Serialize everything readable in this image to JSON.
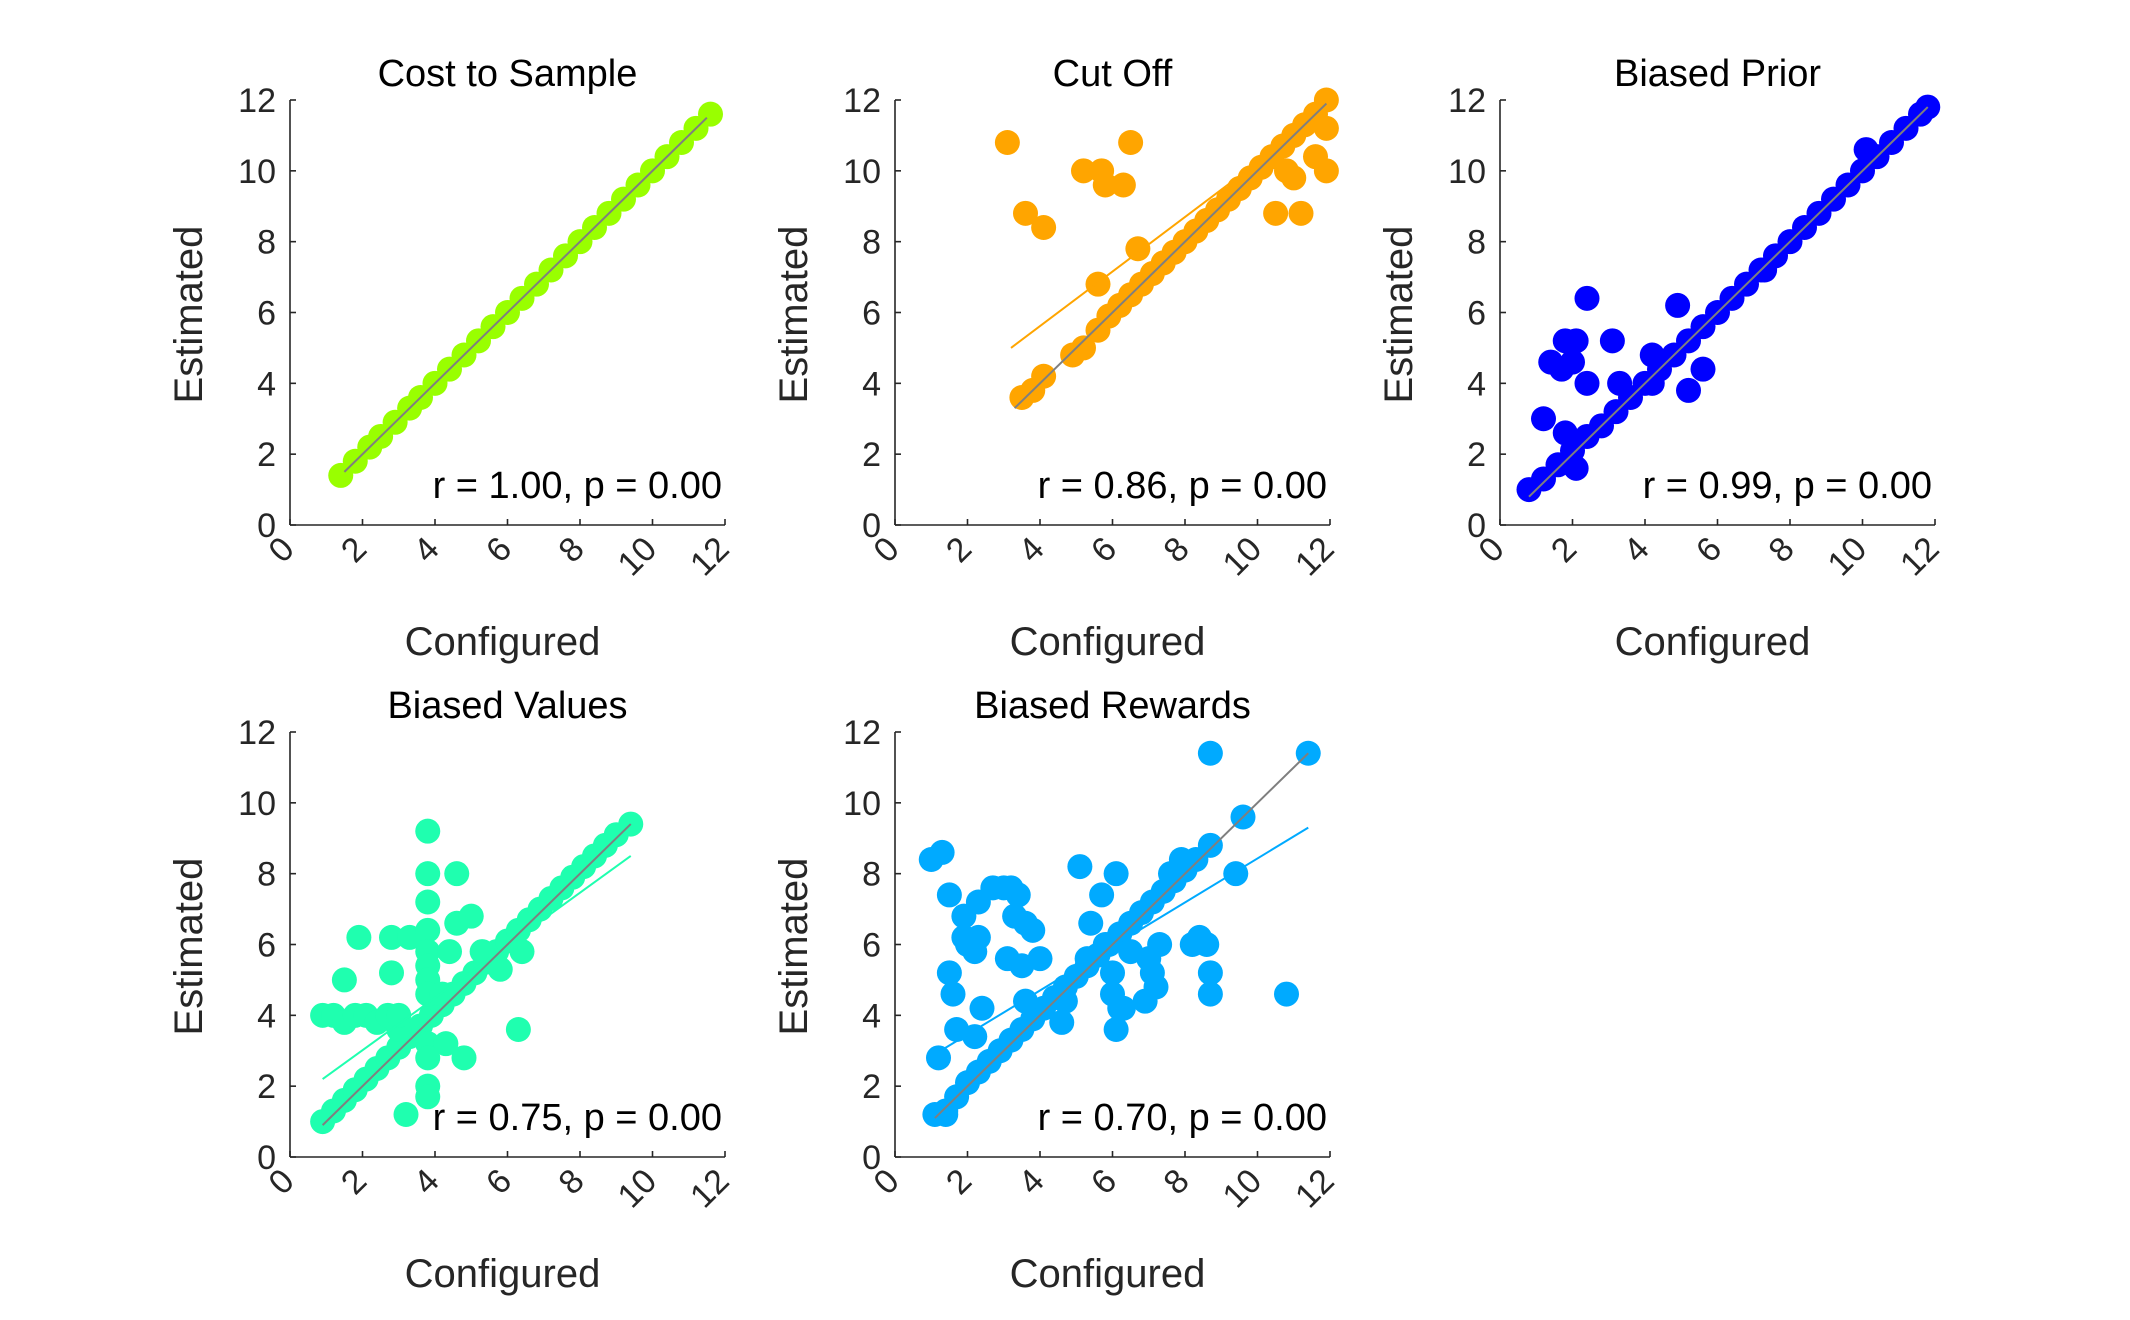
{
  "chart_data": [
    {
      "type": "scatter",
      "title": "Cost to Sample",
      "xlabel": "Configured",
      "ylabel": "Estimated",
      "xlim": [
        0,
        12
      ],
      "ylim": [
        0,
        12
      ],
      "xticks": [
        0,
        2,
        4,
        6,
        8,
        10,
        12
      ],
      "yticks": [
        0,
        2,
        4,
        6,
        8,
        10,
        12
      ],
      "color": "#99ff00",
      "annotation": "r = 1.00, p = 0.00",
      "identity_line": [
        [
          1.5,
          1.5
        ],
        [
          11.5,
          11.5
        ]
      ],
      "fit_line": [
        [
          1.4,
          1.4
        ],
        [
          11.6,
          11.6
        ]
      ],
      "points": [
        [
          1.4,
          1.4
        ],
        [
          1.8,
          1.8
        ],
        [
          2.2,
          2.2
        ],
        [
          2.5,
          2.5
        ],
        [
          2.9,
          2.9
        ],
        [
          3.3,
          3.3
        ],
        [
          3.6,
          3.6
        ],
        [
          4.0,
          4.0
        ],
        [
          4.4,
          4.4
        ],
        [
          4.8,
          4.8
        ],
        [
          5.2,
          5.2
        ],
        [
          5.6,
          5.6
        ],
        [
          6.0,
          6.0
        ],
        [
          6.4,
          6.4
        ],
        [
          6.8,
          6.8
        ],
        [
          7.2,
          7.2
        ],
        [
          7.6,
          7.6
        ],
        [
          8.0,
          8.0
        ],
        [
          8.4,
          8.4
        ],
        [
          8.8,
          8.8
        ],
        [
          9.2,
          9.2
        ],
        [
          9.6,
          9.6
        ],
        [
          10.0,
          10.0
        ],
        [
          10.4,
          10.4
        ],
        [
          10.8,
          10.8
        ],
        [
          11.2,
          11.2
        ],
        [
          11.6,
          11.6
        ]
      ]
    },
    {
      "type": "scatter",
      "title": "Cut Off",
      "xlabel": "Configured",
      "ylabel": "Estimated",
      "xlim": [
        0,
        12
      ],
      "ylim": [
        0,
        12
      ],
      "xticks": [
        0,
        2,
        4,
        6,
        8,
        10,
        12
      ],
      "yticks": [
        0,
        2,
        4,
        6,
        8,
        10,
        12
      ],
      "color": "#ffa500",
      "annotation": "r = 0.86, p = 0.00",
      "identity_line": [
        [
          3.3,
          3.3
        ],
        [
          11.9,
          11.9
        ]
      ],
      "fit_line": [
        [
          3.2,
          5.0
        ],
        [
          11.9,
          11.7
        ]
      ],
      "points": [
        [
          3.5,
          3.6
        ],
        [
          3.8,
          3.8
        ],
        [
          4.1,
          4.2
        ],
        [
          4.9,
          4.8
        ],
        [
          5.2,
          5.0
        ],
        [
          5.6,
          5.5
        ],
        [
          5.9,
          5.9
        ],
        [
          6.2,
          6.2
        ],
        [
          6.5,
          6.5
        ],
        [
          6.8,
          6.8
        ],
        [
          7.1,
          7.1
        ],
        [
          7.4,
          7.4
        ],
        [
          7.7,
          7.7
        ],
        [
          8.0,
          8.0
        ],
        [
          8.3,
          8.3
        ],
        [
          8.6,
          8.6
        ],
        [
          8.9,
          8.9
        ],
        [
          9.2,
          9.2
        ],
        [
          9.5,
          9.5
        ],
        [
          9.8,
          9.8
        ],
        [
          10.1,
          10.1
        ],
        [
          10.4,
          10.4
        ],
        [
          10.7,
          10.7
        ],
        [
          11.0,
          11.0
        ],
        [
          11.3,
          11.3
        ],
        [
          11.6,
          11.6
        ],
        [
          11.9,
          12.0
        ],
        [
          3.1,
          10.8
        ],
        [
          3.6,
          8.8
        ],
        [
          4.1,
          8.4
        ],
        [
          5.2,
          10.0
        ],
        [
          5.7,
          10.0
        ],
        [
          5.8,
          9.6
        ],
        [
          6.3,
          9.6
        ],
        [
          6.5,
          10.8
        ],
        [
          6.7,
          7.8
        ],
        [
          5.6,
          6.8
        ],
        [
          10.5,
          8.8
        ],
        [
          11.2,
          8.8
        ],
        [
          10.8,
          10.0
        ],
        [
          11.9,
          10.0
        ],
        [
          11.9,
          11.2
        ],
        [
          11.0,
          9.8
        ],
        [
          11.6,
          10.4
        ]
      ]
    },
    {
      "type": "scatter",
      "title": "Biased Prior",
      "xlabel": "Configured",
      "ylabel": "Estimated",
      "xlim": [
        0,
        12
      ],
      "ylim": [
        0,
        12
      ],
      "xticks": [
        0,
        2,
        4,
        6,
        8,
        10,
        12
      ],
      "yticks": [
        0,
        2,
        4,
        6,
        8,
        10,
        12
      ],
      "color": "#0000ff",
      "annotation": "r = 0.99, p = 0.00",
      "identity_line": [
        [
          0.8,
          0.8
        ],
        [
          11.8,
          11.8
        ]
      ],
      "fit_line": [
        [
          0.8,
          1.0
        ],
        [
          11.8,
          11.7
        ]
      ],
      "points": [
        [
          0.8,
          1.0
        ],
        [
          1.2,
          1.3
        ],
        [
          1.6,
          1.7
        ],
        [
          2.0,
          2.1
        ],
        [
          2.4,
          2.5
        ],
        [
          2.8,
          2.8
        ],
        [
          3.2,
          3.2
        ],
        [
          3.6,
          3.6
        ],
        [
          4.0,
          4.0
        ],
        [
          4.4,
          4.4
        ],
        [
          4.8,
          4.8
        ],
        [
          5.2,
          5.2
        ],
        [
          5.6,
          5.6
        ],
        [
          6.0,
          6.0
        ],
        [
          6.4,
          6.4
        ],
        [
          6.8,
          6.8
        ],
        [
          7.2,
          7.2
        ],
        [
          7.6,
          7.6
        ],
        [
          8.0,
          8.0
        ],
        [
          8.4,
          8.4
        ],
        [
          8.8,
          8.8
        ],
        [
          9.2,
          9.2
        ],
        [
          9.6,
          9.6
        ],
        [
          10.0,
          10.0
        ],
        [
          10.4,
          10.4
        ],
        [
          10.8,
          10.8
        ],
        [
          11.2,
          11.2
        ],
        [
          11.6,
          11.6
        ],
        [
          11.8,
          11.8
        ],
        [
          1.4,
          4.6
        ],
        [
          1.7,
          4.4
        ],
        [
          1.8,
          5.2
        ],
        [
          2.1,
          5.2
        ],
        [
          2.0,
          4.6
        ],
        [
          2.4,
          4.0
        ],
        [
          2.4,
          6.4
        ],
        [
          3.1,
          5.2
        ],
        [
          3.3,
          4.0
        ],
        [
          4.2,
          4.8
        ],
        [
          4.2,
          4.0
        ],
        [
          4.9,
          6.2
        ],
        [
          5.2,
          3.8
        ],
        [
          5.6,
          4.4
        ],
        [
          1.2,
          3.0
        ],
        [
          1.8,
          2.6
        ],
        [
          2.1,
          1.6
        ],
        [
          10.1,
          10.6
        ],
        [
          7.3,
          7.2
        ]
      ]
    },
    {
      "type": "scatter",
      "title": "Biased Values",
      "xlabel": "Configured",
      "ylabel": "Estimated",
      "xlim": [
        0,
        12
      ],
      "ylim": [
        0,
        12
      ],
      "xticks": [
        0,
        2,
        4,
        6,
        8,
        10,
        12
      ],
      "yticks": [
        0,
        2,
        4,
        6,
        8,
        10,
        12
      ],
      "color": "#1fffaf",
      "annotation": "r = 0.75, p = 0.00",
      "identity_line": [
        [
          0.9,
          0.9
        ],
        [
          9.4,
          9.4
        ]
      ],
      "fit_line": [
        [
          0.9,
          2.2
        ],
        [
          9.4,
          8.5
        ]
      ],
      "points": [
        [
          0.9,
          1.0
        ],
        [
          1.2,
          1.3
        ],
        [
          1.5,
          1.6
        ],
        [
          1.8,
          1.9
        ],
        [
          2.1,
          2.2
        ],
        [
          2.4,
          2.5
        ],
        [
          2.7,
          2.8
        ],
        [
          3.0,
          3.1
        ],
        [
          3.3,
          3.4
        ],
        [
          3.6,
          3.7
        ],
        [
          3.9,
          4.0
        ],
        [
          4.2,
          4.3
        ],
        [
          4.5,
          4.6
        ],
        [
          4.8,
          4.9
        ],
        [
          5.1,
          5.2
        ],
        [
          5.4,
          5.5
        ],
        [
          5.7,
          5.8
        ],
        [
          6.0,
          6.1
        ],
        [
          6.3,
          6.4
        ],
        [
          6.6,
          6.7
        ],
        [
          6.9,
          7.0
        ],
        [
          7.2,
          7.3
        ],
        [
          7.5,
          7.6
        ],
        [
          7.8,
          7.9
        ],
        [
          8.1,
          8.2
        ],
        [
          8.4,
          8.5
        ],
        [
          8.7,
          8.8
        ],
        [
          9.0,
          9.1
        ],
        [
          9.4,
          9.4
        ],
        [
          0.9,
          4.0
        ],
        [
          1.2,
          4.0
        ],
        [
          1.5,
          3.8
        ],
        [
          1.8,
          4.0
        ],
        [
          2.1,
          4.0
        ],
        [
          2.4,
          3.8
        ],
        [
          2.7,
          4.0
        ],
        [
          3.0,
          3.6
        ],
        [
          1.5,
          5.0
        ],
        [
          1.9,
          6.2
        ],
        [
          2.8,
          6.2
        ],
        [
          3.3,
          6.2
        ],
        [
          2.8,
          5.2
        ],
        [
          3.0,
          4.0
        ],
        [
          3.2,
          1.2
        ],
        [
          3.8,
          9.2
        ],
        [
          3.8,
          8.0
        ],
        [
          3.8,
          7.2
        ],
        [
          3.8,
          6.4
        ],
        [
          3.8,
          5.8
        ],
        [
          3.8,
          5.4
        ],
        [
          3.8,
          5.0
        ],
        [
          3.8,
          4.6
        ],
        [
          3.8,
          3.2
        ],
        [
          3.8,
          2.8
        ],
        [
          3.8,
          2.0
        ],
        [
          3.8,
          1.7
        ],
        [
          4.6,
          8.0
        ],
        [
          4.4,
          5.8
        ],
        [
          4.6,
          6.6
        ],
        [
          4.8,
          2.8
        ],
        [
          4.3,
          3.2
        ],
        [
          5.0,
          6.8
        ],
        [
          5.3,
          5.8
        ],
        [
          6.3,
          3.6
        ],
        [
          6.4,
          5.8
        ],
        [
          5.8,
          5.3
        ],
        [
          4.2,
          4.6
        ]
      ]
    },
    {
      "type": "scatter",
      "title": "Biased Rewards",
      "xlabel": "Configured",
      "ylabel": "Estimated",
      "xlim": [
        0,
        12
      ],
      "ylim": [
        0,
        12
      ],
      "xticks": [
        0,
        2,
        4,
        6,
        8,
        10,
        12
      ],
      "yticks": [
        0,
        2,
        4,
        6,
        8,
        10,
        12
      ],
      "color": "#00aaff",
      "annotation": "r = 0.70, p = 0.00",
      "identity_line": [
        [
          1.1,
          1.1
        ],
        [
          11.4,
          11.4
        ]
      ],
      "fit_line": [
        [
          1.1,
          2.9
        ],
        [
          11.4,
          9.3
        ]
      ],
      "points": [
        [
          1.1,
          1.2
        ],
        [
          1.4,
          1.3
        ],
        [
          1.7,
          1.7
        ],
        [
          2.0,
          2.1
        ],
        [
          2.3,
          2.4
        ],
        [
          2.6,
          2.7
        ],
        [
          2.9,
          3.0
        ],
        [
          3.2,
          3.3
        ],
        [
          3.5,
          3.6
        ],
        [
          3.8,
          3.9
        ],
        [
          4.1,
          4.2
        ],
        [
          4.4,
          4.5
        ],
        [
          4.7,
          4.8
        ],
        [
          5.0,
          5.1
        ],
        [
          5.3,
          5.4
        ],
        [
          5.6,
          5.7
        ],
        [
          5.9,
          6.0
        ],
        [
          6.2,
          6.3
        ],
        [
          6.5,
          6.6
        ],
        [
          6.8,
          6.9
        ],
        [
          7.1,
          7.2
        ],
        [
          7.4,
          7.5
        ],
        [
          7.7,
          7.8
        ],
        [
          8.0,
          8.1
        ],
        [
          8.3,
          8.4
        ],
        [
          8.7,
          8.8
        ],
        [
          1.4,
          1.2
        ],
        [
          1.0,
          8.4
        ],
        [
          1.3,
          8.6
        ],
        [
          1.2,
          2.8
        ],
        [
          1.5,
          7.4
        ],
        [
          1.9,
          6.8
        ],
        [
          1.9,
          6.2
        ],
        [
          2.0,
          6.0
        ],
        [
          2.2,
          5.8
        ],
        [
          2.3,
          6.2
        ],
        [
          1.5,
          5.2
        ],
        [
          1.6,
          4.6
        ],
        [
          1.7,
          3.6
        ],
        [
          2.3,
          7.2
        ],
        [
          2.4,
          4.2
        ],
        [
          2.2,
          3.4
        ],
        [
          2.7,
          7.6
        ],
        [
          3.0,
          7.6
        ],
        [
          3.2,
          7.6
        ],
        [
          3.4,
          7.4
        ],
        [
          3.3,
          6.8
        ],
        [
          3.6,
          6.6
        ],
        [
          3.8,
          6.4
        ],
        [
          3.1,
          5.6
        ],
        [
          3.5,
          5.4
        ],
        [
          4.0,
          5.6
        ],
        [
          3.6,
          4.4
        ],
        [
          4.6,
          3.8
        ],
        [
          4.7,
          4.4
        ],
        [
          5.1,
          8.2
        ],
        [
          5.7,
          7.4
        ],
        [
          5.4,
          6.6
        ],
        [
          5.8,
          6.0
        ],
        [
          5.3,
          5.6
        ],
        [
          6.0,
          5.2
        ],
        [
          6.0,
          4.6
        ],
        [
          6.2,
          4.2
        ],
        [
          6.1,
          8.0
        ],
        [
          6.5,
          5.8
        ],
        [
          7.0,
          5.6
        ],
        [
          7.1,
          5.2
        ],
        [
          7.3,
          6.0
        ],
        [
          7.2,
          4.8
        ],
        [
          6.9,
          4.4
        ],
        [
          6.3,
          4.2
        ],
        [
          6.1,
          3.6
        ],
        [
          8.2,
          6.0
        ],
        [
          8.4,
          6.2
        ],
        [
          8.6,
          6.0
        ],
        [
          8.7,
          5.2
        ],
        [
          8.7,
          4.6
        ],
        [
          8.7,
          11.4
        ],
        [
          9.4,
          8.0
        ],
        [
          9.6,
          9.6
        ],
        [
          10.8,
          4.6
        ],
        [
          11.4,
          11.4
        ],
        [
          7.6,
          8.0
        ],
        [
          7.9,
          8.4
        ]
      ]
    }
  ]
}
